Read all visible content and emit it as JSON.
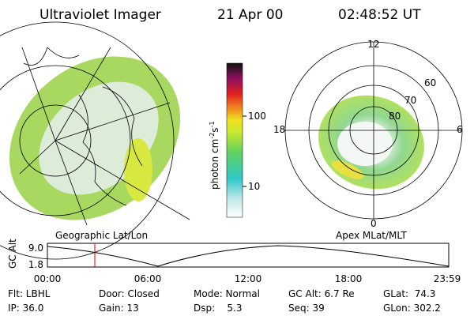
{
  "header": {
    "title": "Ultraviolet Imager",
    "date": "21 Apr 00",
    "time": "02:48:52 UT"
  },
  "left_panel": {
    "label": "Geographic Lat/Lon"
  },
  "right_panel": {
    "label": "Apex MLat/MLT",
    "mlt_labels": [
      "12",
      "18",
      "6",
      "0"
    ],
    "lat_labels": [
      "60",
      "70",
      "80"
    ]
  },
  "colorbar": {
    "unit_parts": [
      "photon cm",
      "-2",
      "s",
      "-1"
    ],
    "tick_labels": [
      "100",
      "10"
    ]
  },
  "altitude_plot": {
    "y_label": "GC Alt",
    "y_tick_labels": [
      "9.0",
      "1.8"
    ],
    "x_tick_labels": [
      "00:00",
      "06:00",
      "12:00",
      "18:00",
      "23:59"
    ]
  },
  "footer": {
    "rows": [
      [
        "Flt: LBHL",
        "Door: Closed",
        "Mode: Normal",
        "GC Alt: 6.7 Re",
        "GLat:  74.3"
      ],
      [
        "IP: 36.0",
        "Gain: 13",
        "Dsp:    5.3",
        "Seq: 39",
        "GLon: 302.2"
      ]
    ]
  }
}
